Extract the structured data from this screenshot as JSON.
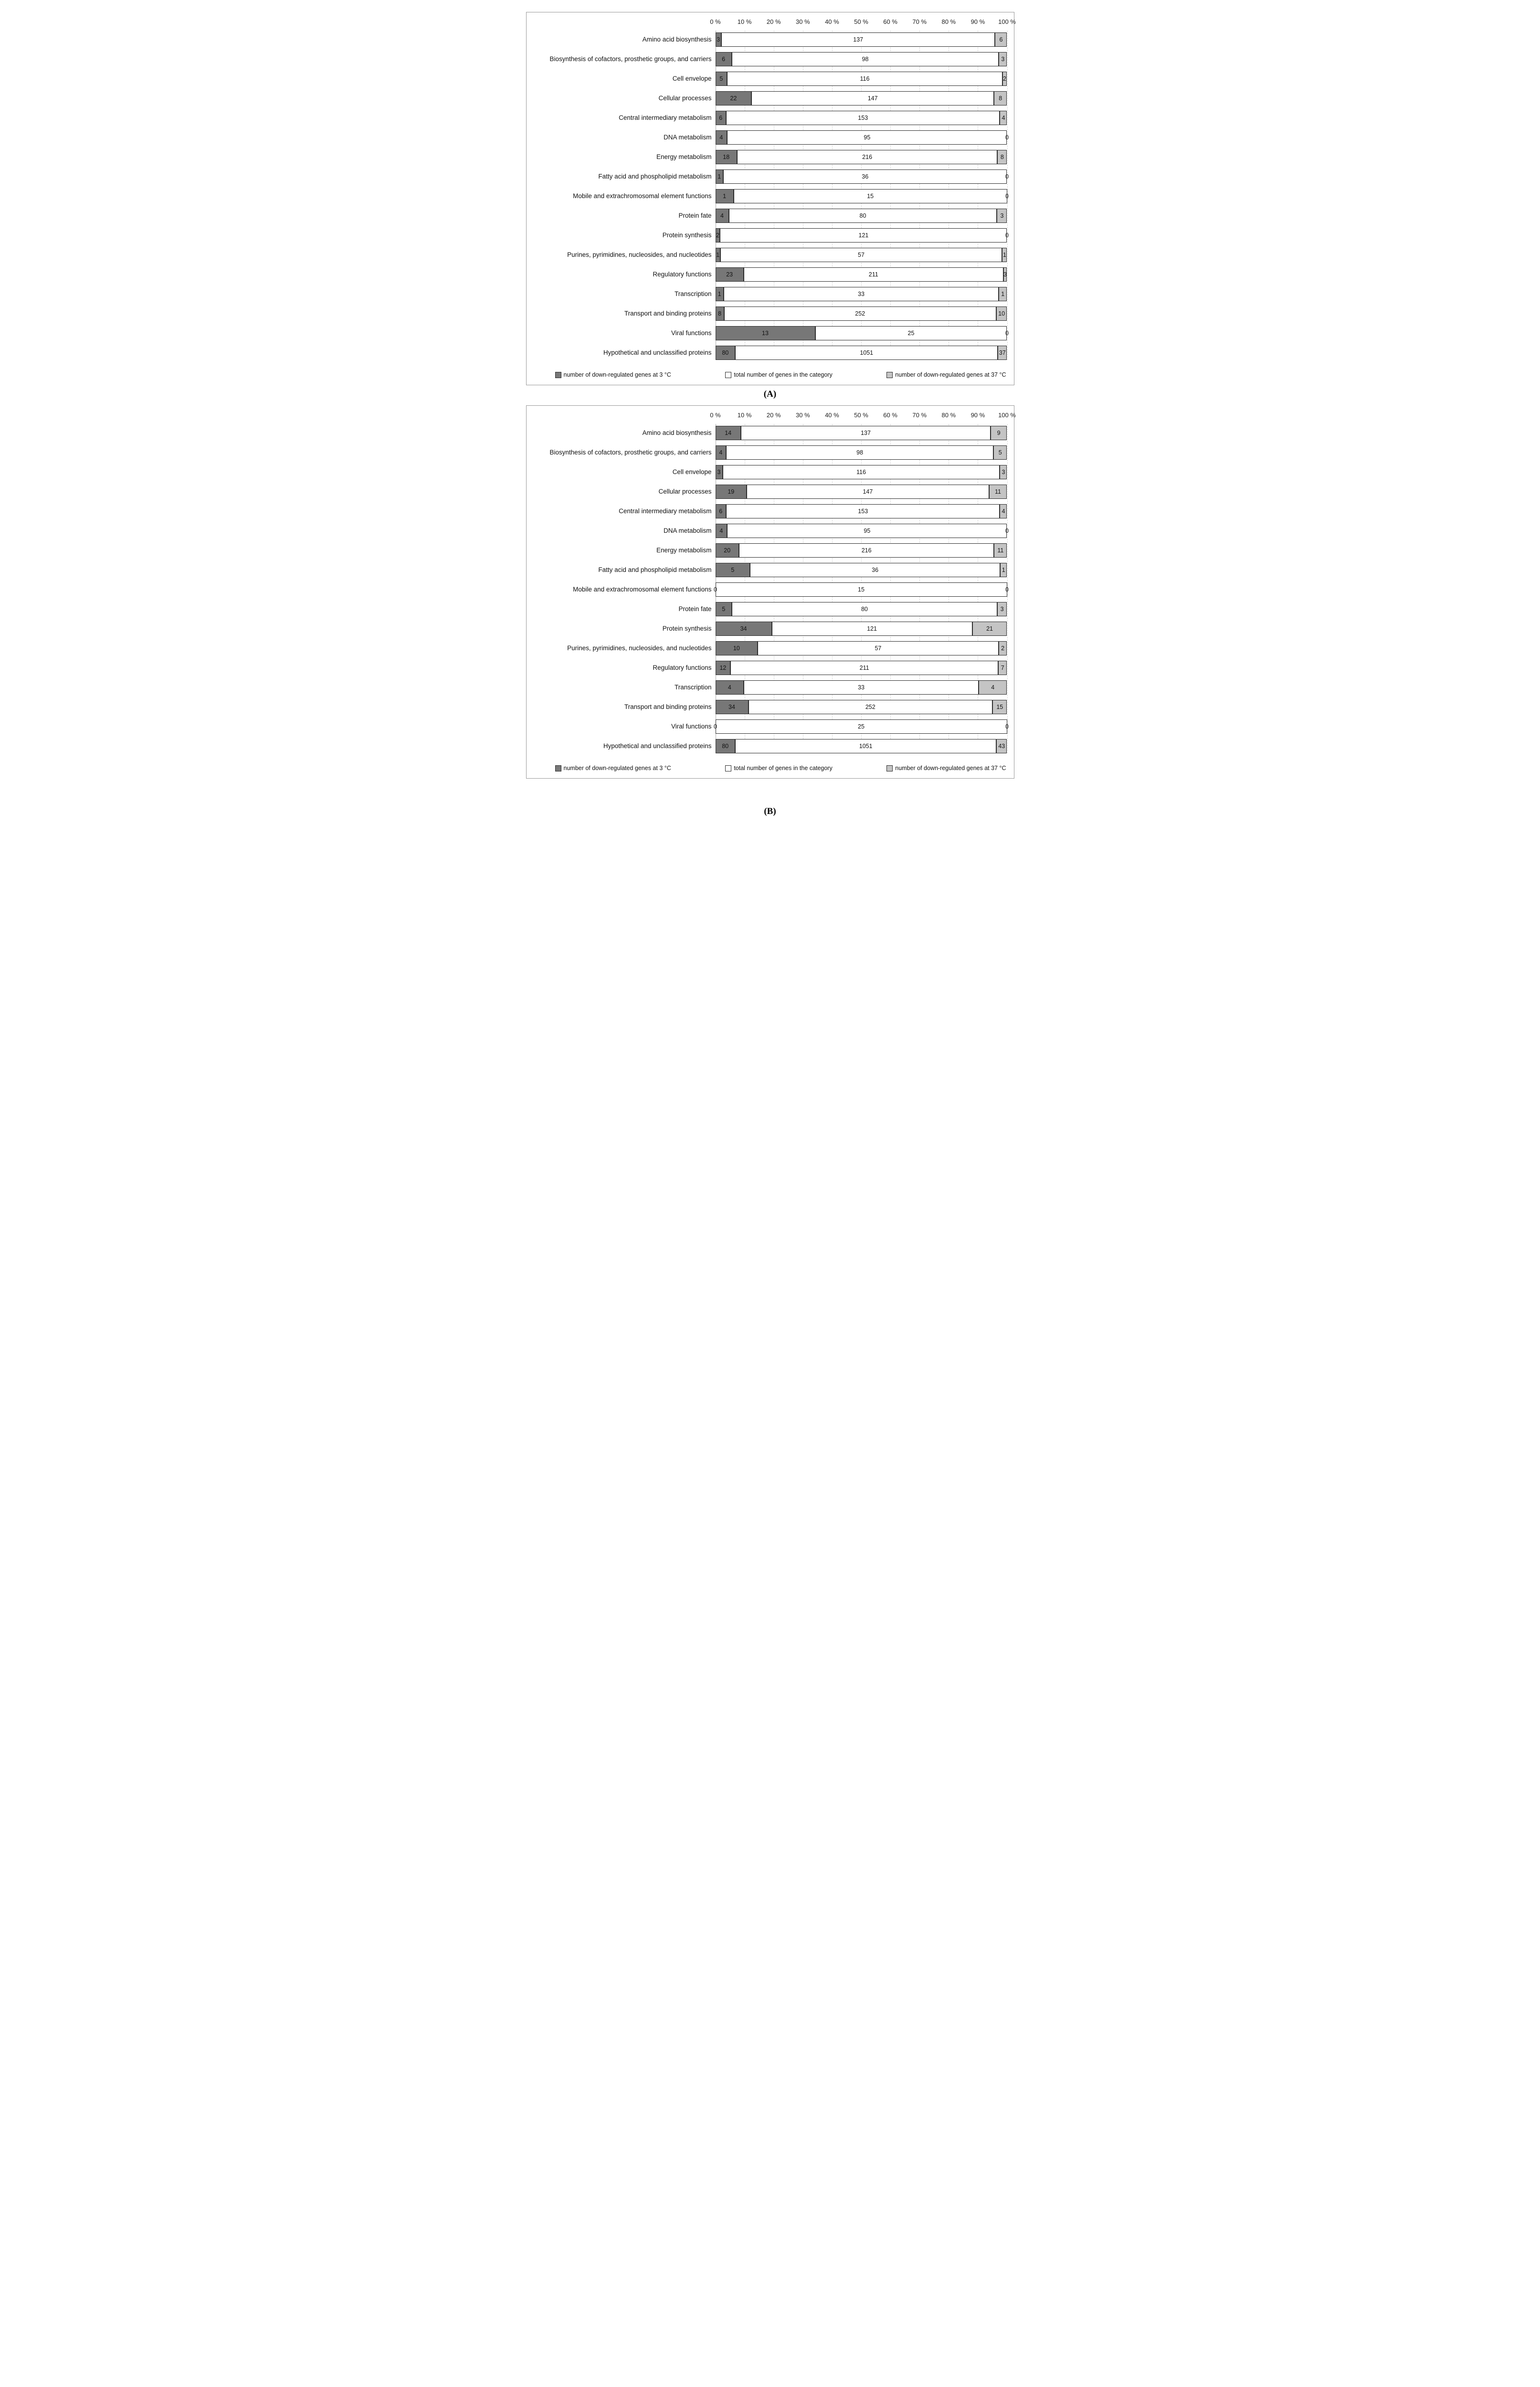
{
  "chart_data": [
    {
      "type": "bar",
      "subtype": "horizontal-100pct-stacked",
      "title": "(A)",
      "xlabel": "",
      "ylabel": "",
      "axis_ticks": [
        "0 %",
        "10 %",
        "20 %",
        "30 %",
        "40 %",
        "50 %",
        "60 %",
        "70 %",
        "80 %",
        "90 %",
        "100 %"
      ],
      "xlim_pct": [
        0,
        100
      ],
      "grid": "dashed-vertical",
      "legend_position": "bottom",
      "series_colors": [
        "#777777",
        "#ffffff",
        "#c4c4c4"
      ],
      "categories": [
        "Amino acid biosynthesis",
        "Biosynthesis of cofactors, prosthetic groups, and carriers",
        "Cell envelope",
        "Cellular processes",
        "Central intermediary metabolism",
        "DNA metabolism",
        "Energy metabolism",
        "Fatty acid and phospholipid metabolism",
        "Mobile and extrachromosomal element functions",
        "Protein fate",
        "Protein synthesis",
        "Purines, pyrimidines, nucleosides, and nucleotides",
        "Regulatory functions",
        "Transcription",
        "Transport and binding proteins",
        "Viral functions",
        "Hypothetical and unclassified proteins"
      ],
      "series": [
        {
          "name": "number of down-regulated genes at 3 °C",
          "values": [
            3,
            6,
            5,
            22,
            6,
            4,
            18,
            1,
            1,
            4,
            2,
            1,
            23,
            1,
            8,
            13,
            80
          ]
        },
        {
          "name": "total number of  genes in the category",
          "values": [
            137,
            98,
            116,
            147,
            153,
            95,
            216,
            36,
            15,
            80,
            121,
            57,
            211,
            33,
            252,
            25,
            1051
          ]
        },
        {
          "name": "number of down-regulated genes at 37 °C",
          "values": [
            6,
            3,
            2,
            8,
            4,
            0,
            8,
            0,
            0,
            3,
            0,
            1,
            3,
            1,
            10,
            0,
            37
          ]
        }
      ]
    },
    {
      "type": "bar",
      "subtype": "horizontal-100pct-stacked",
      "title": "(B)",
      "xlabel": "",
      "ylabel": "",
      "axis_ticks": [
        "0 %",
        "10 %",
        "20 %",
        "30 %",
        "40 %",
        "50 %",
        "60 %",
        "70 %",
        "80 %",
        "90 %",
        "100 %"
      ],
      "xlim_pct": [
        0,
        100
      ],
      "grid": "dashed-vertical",
      "legend_position": "bottom",
      "series_colors": [
        "#777777",
        "#ffffff",
        "#c4c4c4"
      ],
      "categories": [
        "Amino acid biosynthesis",
        "Biosynthesis of cofactors, prosthetic groups, and carriers",
        "Cell envelope",
        "Cellular processes",
        "Central intermediary metabolism",
        "DNA metabolism",
        "Energy metabolism",
        "Fatty acid and phospholipid metabolism",
        "Mobile and extrachromosomal element functions",
        "Protein fate",
        "Protein synthesis",
        "Purines, pyrimidines, nucleosides, and nucleotides",
        "Regulatory functions",
        "Transcription",
        "Transport and binding proteins",
        "Viral functions",
        "Hypothetical and unclassified proteins"
      ],
      "series": [
        {
          "name": "number of down-regulated genes at 3 °C",
          "values": [
            14,
            4,
            3,
            19,
            6,
            4,
            20,
            5,
            0,
            5,
            34,
            10,
            12,
            4,
            34,
            0,
            80
          ]
        },
        {
          "name": "total number of  genes in the category",
          "values": [
            137,
            98,
            116,
            147,
            153,
            95,
            216,
            36,
            15,
            80,
            121,
            57,
            211,
            33,
            252,
            25,
            1051
          ]
        },
        {
          "name": "number of down-regulated genes at 37 °C",
          "values": [
            9,
            5,
            3,
            11,
            4,
            0,
            11,
            1,
            0,
            3,
            21,
            2,
            7,
            4,
            15,
            0,
            43
          ]
        }
      ]
    }
  ]
}
